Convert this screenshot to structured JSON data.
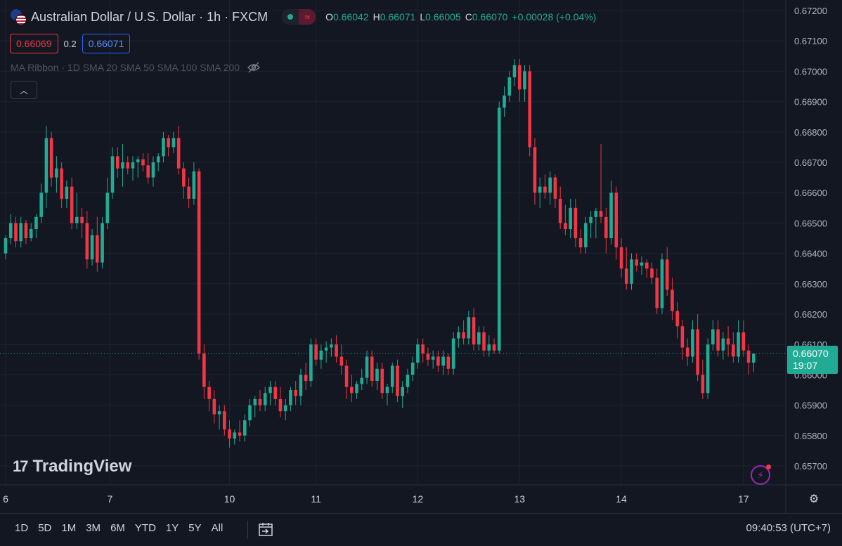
{
  "header": {
    "symbol_title": "Australian Dollar / U.S. Dollar · 1h · FXCM",
    "ohlc": [
      {
        "k": "O",
        "v": "0.66042"
      },
      {
        "k": "H",
        "v": "0.66071"
      },
      {
        "k": "L",
        "v": "0.66005"
      },
      {
        "k": "C",
        "v": "0.66070"
      }
    ],
    "change": "+0.00028 (+0.04%)",
    "sell_price": "0.66069",
    "spread": "0.2",
    "buy_price": "0.66071",
    "indicator": "MA Ribbon · 1D SMA 20 SMA 50 SMA 100 SMA 200",
    "logo_text": "TradingView"
  },
  "price_tag": {
    "price": "0.66070",
    "countdown": "19:07"
  },
  "bottom_bar": {
    "ranges": [
      "1D",
      "5D",
      "1M",
      "3M",
      "6M",
      "YTD",
      "1Y",
      "5Y",
      "All"
    ],
    "clock": "09:40:53 (UTC+7)"
  },
  "colors": {
    "up": "#22ab94",
    "down": "#f23645",
    "background": "#131722",
    "grid": "#1e222d"
  },
  "icons": [
    "flag-icon",
    "wave-icon",
    "eye-off-icon",
    "chevron-up-icon",
    "bolt-icon",
    "gear-icon",
    "calendar-icon"
  ],
  "chart_data": {
    "type": "candlestick",
    "interval": "1h",
    "y_ticks": [
      "0.67200",
      "0.67100",
      "0.67000",
      "0.66900",
      "0.66800",
      "0.66700",
      "0.66600",
      "0.66500",
      "0.66400",
      "0.66300",
      "0.66200",
      "0.66100",
      "0.66000",
      "0.65900",
      "0.65800",
      "0.65700"
    ],
    "ylim": [
      0.6565,
      0.6725
    ],
    "x_ticks": [
      {
        "label": "6",
        "index": 0
      },
      {
        "label": "7",
        "index": 20.5
      },
      {
        "label": "10",
        "index": 44
      },
      {
        "label": "11",
        "index": 61
      },
      {
        "label": "12",
        "index": 81
      },
      {
        "label": "13",
        "index": 101
      },
      {
        "label": "14",
        "index": 121
      },
      {
        "label": "17",
        "index": 145
      }
    ],
    "last_price": 0.6607,
    "candles": [
      [
        0.664,
        0.6646,
        0.6638,
        0.6645
      ],
      [
        0.6645,
        0.6653,
        0.6643,
        0.665
      ],
      [
        0.665,
        0.6652,
        0.6642,
        0.6644
      ],
      [
        0.6644,
        0.6652,
        0.6642,
        0.665
      ],
      [
        0.665,
        0.6651,
        0.6643,
        0.6645
      ],
      [
        0.6645,
        0.665,
        0.6644,
        0.6648
      ],
      [
        0.6648,
        0.6653,
        0.6645,
        0.6652
      ],
      [
        0.6652,
        0.6663,
        0.665,
        0.666
      ],
      [
        0.666,
        0.6682,
        0.6655,
        0.6678
      ],
      [
        0.6678,
        0.668,
        0.6662,
        0.6665
      ],
      [
        0.6665,
        0.6672,
        0.666,
        0.6668
      ],
      [
        0.6668,
        0.667,
        0.6655,
        0.6658
      ],
      [
        0.6658,
        0.6664,
        0.6655,
        0.6662
      ],
      [
        0.6662,
        0.6665,
        0.6648,
        0.665
      ],
      [
        0.665,
        0.666,
        0.6648,
        0.6652
      ],
      [
        0.6652,
        0.6655,
        0.6645,
        0.665
      ],
      [
        0.665,
        0.6654,
        0.6635,
        0.6638
      ],
      [
        0.6638,
        0.6648,
        0.6636,
        0.6646
      ],
      [
        0.6646,
        0.6652,
        0.6634,
        0.6637
      ],
      [
        0.6637,
        0.6652,
        0.6635,
        0.665
      ],
      [
        0.665,
        0.6665,
        0.6648,
        0.666
      ],
      [
        0.666,
        0.6675,
        0.6658,
        0.6672
      ],
      [
        0.6672,
        0.6675,
        0.6665,
        0.6668
      ],
      [
        0.6668,
        0.6676,
        0.6662,
        0.667
      ],
      [
        0.667,
        0.6672,
        0.6666,
        0.6668
      ],
      [
        0.6668,
        0.6672,
        0.6664,
        0.667
      ],
      [
        0.667,
        0.6672,
        0.6665,
        0.6671
      ],
      [
        0.6671,
        0.6673,
        0.6667,
        0.6669
      ],
      [
        0.6669,
        0.6673,
        0.6663,
        0.6665
      ],
      [
        0.6665,
        0.6672,
        0.6662,
        0.667
      ],
      [
        0.667,
        0.6673,
        0.6667,
        0.6672
      ],
      [
        0.6672,
        0.668,
        0.667,
        0.6678
      ],
      [
        0.6678,
        0.6679,
        0.6672,
        0.6675
      ],
      [
        0.6675,
        0.668,
        0.6673,
        0.6678
      ],
      [
        0.6678,
        0.6682,
        0.6666,
        0.6668
      ],
      [
        0.6668,
        0.667,
        0.6658,
        0.6662
      ],
      [
        0.6662,
        0.6665,
        0.6655,
        0.6658
      ],
      [
        0.6658,
        0.667,
        0.6656,
        0.6667
      ],
      [
        0.6667,
        0.6668,
        0.6605,
        0.6607
      ],
      [
        0.6607,
        0.661,
        0.6592,
        0.6596
      ],
      [
        0.6596,
        0.6598,
        0.6588,
        0.6592
      ],
      [
        0.6592,
        0.6595,
        0.6584,
        0.6587
      ],
      [
        0.6587,
        0.659,
        0.6582,
        0.6588
      ],
      [
        0.6588,
        0.659,
        0.658,
        0.6582
      ],
      [
        0.6582,
        0.6585,
        0.6576,
        0.6579
      ],
      [
        0.6579,
        0.6582,
        0.6577,
        0.6581
      ],
      [
        0.6581,
        0.6585,
        0.6578,
        0.658
      ],
      [
        0.658,
        0.6587,
        0.6578,
        0.6585
      ],
      [
        0.6585,
        0.6592,
        0.6583,
        0.659
      ],
      [
        0.659,
        0.6593,
        0.6586,
        0.6592
      ],
      [
        0.6592,
        0.6595,
        0.6588,
        0.659
      ],
      [
        0.659,
        0.6596,
        0.6588,
        0.6594
      ],
      [
        0.6594,
        0.6598,
        0.659,
        0.6596
      ],
      [
        0.6596,
        0.6598,
        0.659,
        0.6592
      ],
      [
        0.6592,
        0.6596,
        0.6586,
        0.6588
      ],
      [
        0.6588,
        0.6592,
        0.6585,
        0.659
      ],
      [
        0.659,
        0.6596,
        0.6588,
        0.6595
      ],
      [
        0.6595,
        0.6598,
        0.659,
        0.6593
      ],
      [
        0.6593,
        0.6602,
        0.659,
        0.66
      ],
      [
        0.66,
        0.6604,
        0.6595,
        0.6598
      ],
      [
        0.6598,
        0.6612,
        0.6596,
        0.661
      ],
      [
        0.661,
        0.6612,
        0.6603,
        0.6605
      ],
      [
        0.6605,
        0.661,
        0.6602,
        0.6608
      ],
      [
        0.6608,
        0.6611,
        0.6604,
        0.6609
      ],
      [
        0.6609,
        0.6612,
        0.6606,
        0.661
      ],
      [
        0.661,
        0.6613,
        0.6604,
        0.6606
      ],
      [
        0.6606,
        0.661,
        0.66,
        0.6603
      ],
      [
        0.6603,
        0.6605,
        0.6592,
        0.6596
      ],
      [
        0.6596,
        0.66,
        0.6591,
        0.6594
      ],
      [
        0.6594,
        0.6598,
        0.6592,
        0.6597
      ],
      [
        0.6597,
        0.6602,
        0.6595,
        0.6599
      ],
      [
        0.6599,
        0.6608,
        0.6597,
        0.6606
      ],
      [
        0.6606,
        0.6608,
        0.6596,
        0.6598
      ],
      [
        0.6598,
        0.6604,
        0.6595,
        0.6602
      ],
      [
        0.6602,
        0.6604,
        0.6592,
        0.6594
      ],
      [
        0.6594,
        0.6597,
        0.659,
        0.6596
      ],
      [
        0.6596,
        0.6604,
        0.6594,
        0.6603
      ],
      [
        0.6603,
        0.6605,
        0.6591,
        0.6593
      ],
      [
        0.6593,
        0.6598,
        0.6589,
        0.6596
      ],
      [
        0.6596,
        0.6602,
        0.6594,
        0.66
      ],
      [
        0.66,
        0.6606,
        0.6598,
        0.6604
      ],
      [
        0.6604,
        0.6612,
        0.6602,
        0.661
      ],
      [
        0.661,
        0.6612,
        0.6604,
        0.6607
      ],
      [
        0.6607,
        0.6609,
        0.6603,
        0.6605
      ],
      [
        0.6605,
        0.6608,
        0.6602,
        0.6606
      ],
      [
        0.6606,
        0.6608,
        0.6601,
        0.6603
      ],
      [
        0.6603,
        0.6608,
        0.66,
        0.6606
      ],
      [
        0.6606,
        0.6607,
        0.66,
        0.6602
      ],
      [
        0.6602,
        0.6614,
        0.66,
        0.6612
      ],
      [
        0.6612,
        0.6616,
        0.6609,
        0.6614
      ],
      [
        0.6614,
        0.6618,
        0.661,
        0.6612
      ],
      [
        0.6612,
        0.6621,
        0.661,
        0.6619
      ],
      [
        0.6619,
        0.6622,
        0.6608,
        0.661
      ],
      [
        0.661,
        0.6616,
        0.6608,
        0.6614
      ],
      [
        0.6614,
        0.6616,
        0.6606,
        0.6608
      ],
      [
        0.6608,
        0.6613,
        0.6606,
        0.661
      ],
      [
        0.661,
        0.6612,
        0.6607,
        0.6608
      ],
      [
        0.6608,
        0.669,
        0.6607,
        0.6688
      ],
      [
        0.6688,
        0.6695,
        0.6685,
        0.6692
      ],
      [
        0.6692,
        0.67,
        0.669,
        0.6698
      ],
      [
        0.6698,
        0.6704,
        0.6695,
        0.6702
      ],
      [
        0.6702,
        0.6704,
        0.669,
        0.6694
      ],
      [
        0.6694,
        0.6702,
        0.669,
        0.67
      ],
      [
        0.67,
        0.6702,
        0.6672,
        0.6675
      ],
      [
        0.6675,
        0.6678,
        0.6656,
        0.666
      ],
      [
        0.666,
        0.6665,
        0.6655,
        0.6662
      ],
      [
        0.6662,
        0.6666,
        0.6658,
        0.666
      ],
      [
        0.666,
        0.6667,
        0.6656,
        0.6665
      ],
      [
        0.6665,
        0.6666,
        0.6655,
        0.6658
      ],
      [
        0.6658,
        0.6662,
        0.6648,
        0.665
      ],
      [
        0.665,
        0.6656,
        0.6646,
        0.6648
      ],
      [
        0.6648,
        0.6658,
        0.6645,
        0.6655
      ],
      [
        0.6655,
        0.6658,
        0.6642,
        0.6645
      ],
      [
        0.6645,
        0.6648,
        0.664,
        0.6642
      ],
      [
        0.6642,
        0.6652,
        0.664,
        0.665
      ],
      [
        0.665,
        0.6654,
        0.6645,
        0.6652
      ],
      [
        0.6652,
        0.6655,
        0.6645,
        0.6654
      ],
      [
        0.6654,
        0.6676,
        0.665,
        0.6652
      ],
      [
        0.6652,
        0.6655,
        0.664,
        0.6645
      ],
      [
        0.6645,
        0.6664,
        0.6643,
        0.666
      ],
      [
        0.666,
        0.6662,
        0.6638,
        0.6642
      ],
      [
        0.6642,
        0.6645,
        0.6632,
        0.6635
      ],
      [
        0.6635,
        0.6642,
        0.6628,
        0.663
      ],
      [
        0.663,
        0.664,
        0.6628,
        0.6638
      ],
      [
        0.6638,
        0.664,
        0.6634,
        0.6636
      ],
      [
        0.6636,
        0.6639,
        0.6633,
        0.6637
      ],
      [
        0.6637,
        0.6638,
        0.6632,
        0.6635
      ],
      [
        0.6635,
        0.6637,
        0.663,
        0.6632
      ],
      [
        0.6632,
        0.6635,
        0.662,
        0.6622
      ],
      [
        0.6622,
        0.664,
        0.662,
        0.6638
      ],
      [
        0.6638,
        0.6642,
        0.6626,
        0.6628
      ],
      [
        0.6628,
        0.6632,
        0.6618,
        0.6621
      ],
      [
        0.6621,
        0.6624,
        0.6612,
        0.6616
      ],
      [
        0.6616,
        0.6618,
        0.6605,
        0.6609
      ],
      [
        0.6609,
        0.6612,
        0.6603,
        0.6606
      ],
      [
        0.6606,
        0.6618,
        0.6604,
        0.6615
      ],
      [
        0.6615,
        0.662,
        0.6598,
        0.66
      ],
      [
        0.66,
        0.6605,
        0.6592,
        0.6594
      ],
      [
        0.6594,
        0.6612,
        0.6592,
        0.661
      ],
      [
        0.661,
        0.6618,
        0.6608,
        0.6615
      ],
      [
        0.6615,
        0.6618,
        0.6606,
        0.6608
      ],
      [
        0.6608,
        0.6614,
        0.6605,
        0.6612
      ],
      [
        0.6612,
        0.6616,
        0.6606,
        0.661
      ],
      [
        0.661,
        0.6614,
        0.6604,
        0.6606
      ],
      [
        0.6606,
        0.6618,
        0.6604,
        0.6614
      ],
      [
        0.6614,
        0.6618,
        0.6606,
        0.6608
      ],
      [
        0.6608,
        0.661,
        0.66,
        0.6604
      ],
      [
        0.6604,
        0.6607,
        0.6601,
        0.6607
      ]
    ]
  }
}
